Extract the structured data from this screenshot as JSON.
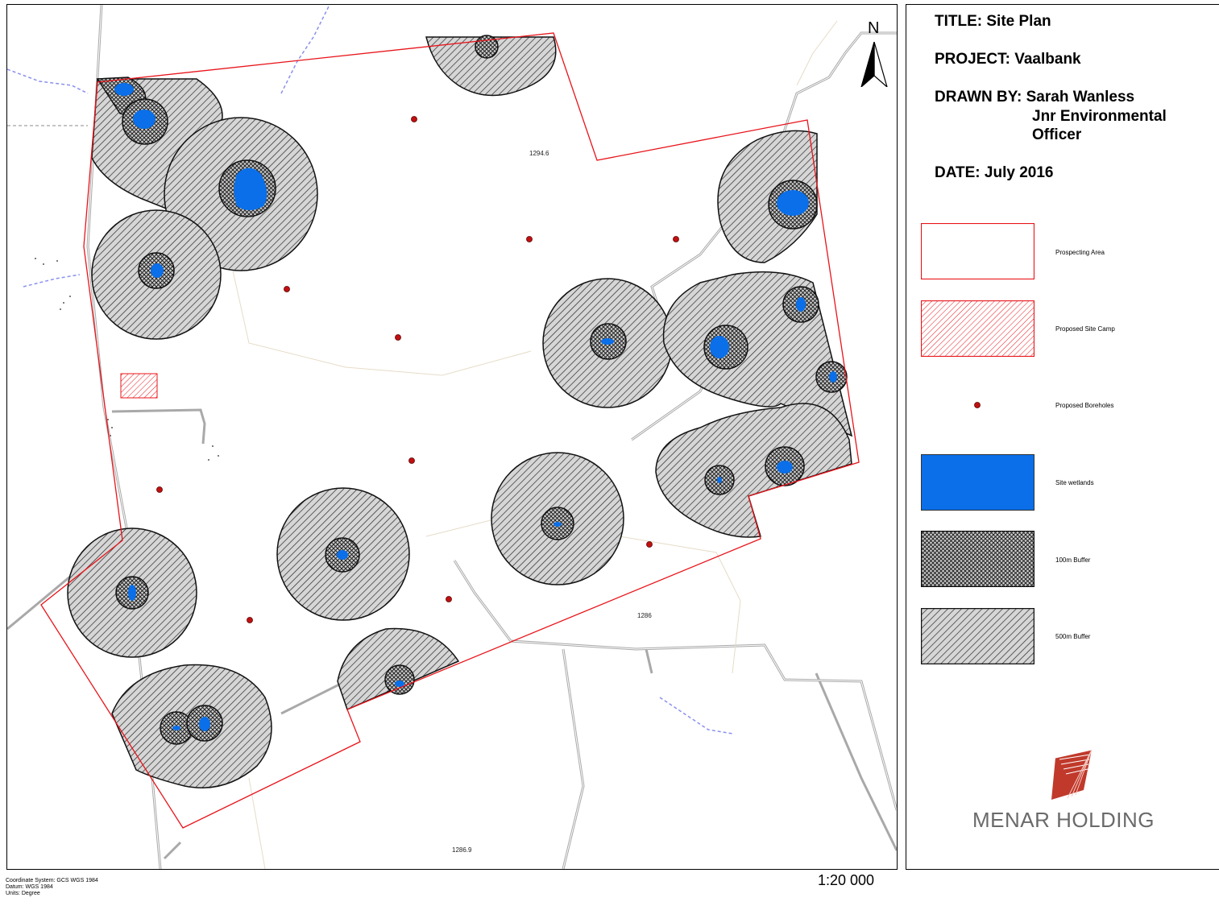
{
  "map": {
    "spot_heights": [
      "1294.6",
      "1286",
      "1286.9"
    ],
    "north_label": "N",
    "scale": "1:20 000",
    "coordinate_info": [
      "Coordinate System: GCS WGS 1984",
      "Datum: WGS 1984",
      "Units: Degree"
    ]
  },
  "title_block": {
    "title": "TITLE: Site Plan",
    "project": "PROJECT: Vaalbank",
    "drawn_by_line1": "DRAWN BY: Sarah Wanless",
    "drawn_by_line2": "Jnr Environmental",
    "drawn_by_line3": "Officer",
    "date": "DATE: July 2016"
  },
  "legend": [
    {
      "key": "prospecting-area",
      "label": "Prospecting Area"
    },
    {
      "key": "proposed-site-camp",
      "label": "Proposed Site Camp"
    },
    {
      "key": "proposed-boreholes",
      "label": "Proposed Boreholes"
    },
    {
      "key": "site-wetlands",
      "label": "Site wetlands"
    },
    {
      "key": "buffer-100m",
      "label": "100m Buffer"
    },
    {
      "key": "buffer-500m",
      "label": "500m Buffer"
    }
  ],
  "logo": {
    "text": "MENAR HOLDING"
  },
  "colors": {
    "boundary": "#e8141a",
    "wetland": "#0a6fe8",
    "borehole": "#c01010",
    "hatch": "#2a2a2a",
    "buffer_fill": "#d4d4d4",
    "road": "#a0a0a0",
    "stream": "#7a86f0",
    "logo": "#c0392b"
  }
}
